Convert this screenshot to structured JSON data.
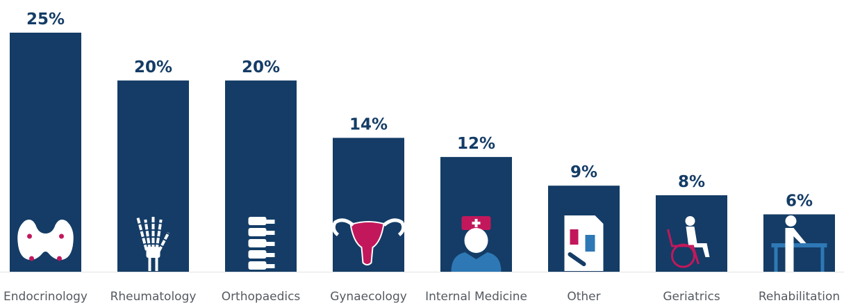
{
  "chart_data": {
    "type": "bar",
    "categories": [
      "Endocrinology",
      "Rheumatology",
      "Orthopaedics",
      "Gynaecology",
      "Internal Medicine",
      "Other",
      "Geriatrics",
      "Rehabilitation"
    ],
    "values": [
      25,
      20,
      20,
      14,
      12,
      9,
      8,
      6
    ],
    "value_labels": [
      "25%",
      "20%",
      "20%",
      "14%",
      "12%",
      "9%",
      "8%",
      "6%"
    ],
    "color": "#143c66"
  }
}
